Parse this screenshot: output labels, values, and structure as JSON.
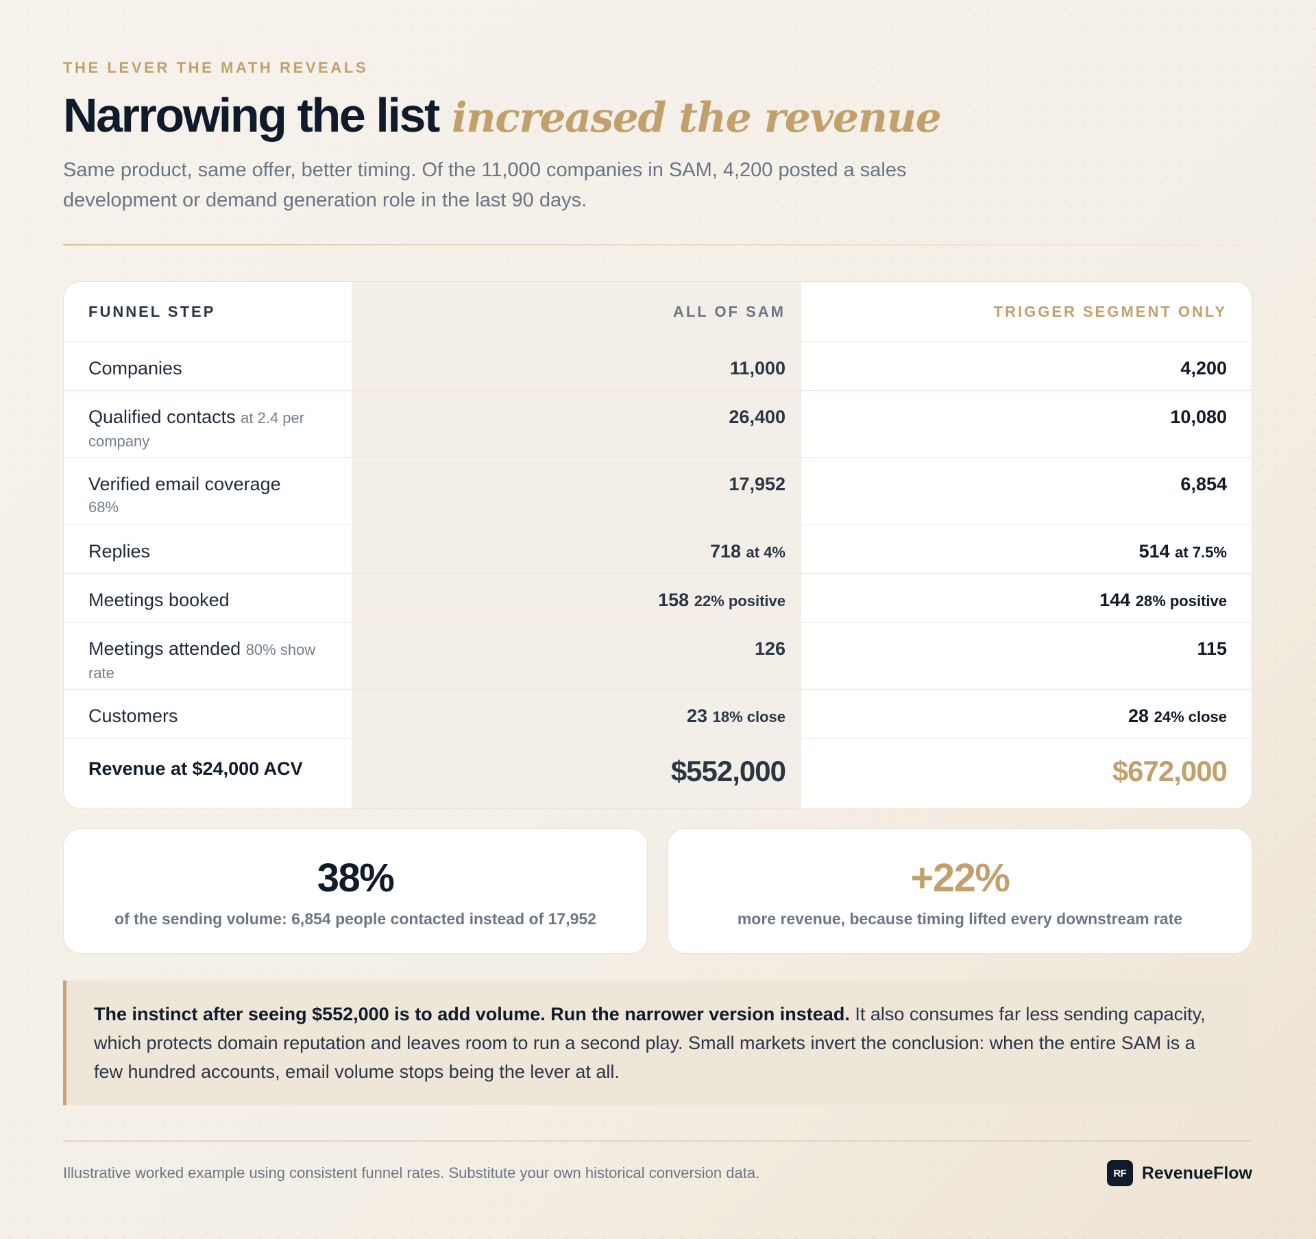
{
  "eyebrow": "THE LEVER THE MATH REVEALS",
  "headline": {
    "strong": "Narrowing the list",
    "script": "increased the revenue"
  },
  "lede": "Same product, same offer, better timing. Of the 11,000 companies in SAM, 4,200 posted a sales development or demand generation role in the last 90 days.",
  "table": {
    "headers": [
      "FUNNEL STEP",
      "ALL OF SAM",
      "TRIGGER SEGMENT ONLY"
    ],
    "rows": [
      {
        "label": "Companies",
        "sub": "",
        "sam": "11,000",
        "sam_note": "",
        "trigger": "4,200",
        "trigger_note": ""
      },
      {
        "label": "Qualified contacts",
        "sub": "at 2.4 per company",
        "sam": "26,400",
        "sam_note": "",
        "trigger": "10,080",
        "trigger_note": ""
      },
      {
        "label": "Verified email coverage",
        "sub": "68%",
        "sam": "17,952",
        "sam_note": "",
        "trigger": "6,854",
        "trigger_note": ""
      },
      {
        "label": "Replies",
        "sub": "",
        "sam": "718",
        "sam_note": "at 4%",
        "trigger": "514",
        "trigger_note": "at 7.5%"
      },
      {
        "label": "Meetings booked",
        "sub": "",
        "sam": "158",
        "sam_note": "22% positive",
        "trigger": "144",
        "trigger_note": "28% positive"
      },
      {
        "label": "Meetings attended",
        "sub": "80% show rate",
        "sam": "126",
        "sam_note": "",
        "trigger": "115",
        "trigger_note": ""
      },
      {
        "label": "Customers",
        "sub": "",
        "sam": "23",
        "sam_note": "18% close",
        "trigger": "28",
        "trigger_note": "24% close"
      }
    ],
    "revenue": {
      "label": "Revenue at $24,000 ACV",
      "sam": "$552,000",
      "trigger": "$672,000"
    }
  },
  "stats": [
    {
      "value": "38%",
      "caption": "of the sending volume: 6,854 people contacted instead of 17,952",
      "color": "#0f1b2b"
    },
    {
      "value": "+22%",
      "caption": "more revenue, because timing lifted every downstream rate",
      "color": "#c2a06c"
    }
  ],
  "callout": {
    "bold": "The instinct after seeing $552,000 is to add volume. Run the narrower version instead.",
    "rest": " It also consumes far less sending capacity, which protects domain reputation and leaves room to run a second play. Small markets invert the conclusion: when the entire SAM is a few hundred accounts, email volume stops being the lever at all."
  },
  "footer": {
    "note": "Illustrative worked example using consistent funnel rates. Substitute your own historical conversion data.",
    "brand_mark": "RF",
    "brand_name": "RevenueFlow"
  },
  "colors": {
    "accent": "#c2a06c",
    "ink": "#0f1b2b",
    "muted": "#6b7684",
    "background": "#f5f1ea"
  }
}
